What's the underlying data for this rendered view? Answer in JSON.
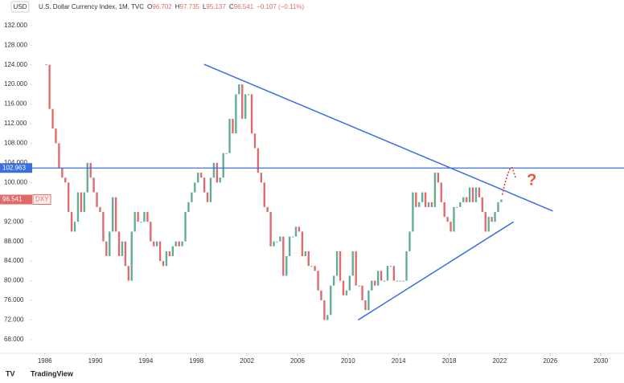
{
  "chart_data": {
    "type": "candlestick",
    "header": {
      "title": "U.S. Dollar Currency Index, 1M, TVC",
      "ohlc": [
        {
          "letter": "O",
          "value": 96.702
        },
        {
          "letter": "H",
          "value": 97.735
        },
        {
          "letter": "L",
          "value": 95.137
        },
        {
          "letter": "C",
          "value": 96.541
        }
      ],
      "change": "−0.107 (−0.11%)"
    },
    "currency": "USD",
    "symbol": "DXY",
    "brand": "TradingView",
    "annotation": "?",
    "up_color": "#5fae93",
    "down_color": "#e06a6a",
    "x": [
      1986,
      1986.25,
      1986.5,
      1986.75,
      1987,
      1987.25,
      1987.5,
      1987.75,
      1988,
      1988.25,
      1988.5,
      1988.75,
      1989,
      1989.25,
      1989.5,
      1989.75,
      1990,
      1990.25,
      1990.5,
      1990.75,
      1991,
      1991.25,
      1991.5,
      1991.75,
      1992,
      1992.25,
      1992.5,
      1992.75,
      1993,
      1993.25,
      1993.5,
      1993.75,
      1994,
      1994.25,
      1994.5,
      1994.75,
      1995,
      1995.25,
      1995.5,
      1995.75,
      1996,
      1996.25,
      1996.5,
      1996.75,
      1997,
      1997.25,
      1997.5,
      1997.75,
      1998,
      1998.25,
      1998.5,
      1998.75,
      1999,
      1999.25,
      1999.5,
      1999.75,
      2000,
      2000.25,
      2000.5,
      2000.75,
      2001,
      2001.25,
      2001.5,
      2001.75,
      2002,
      2002.25,
      2002.5,
      2002.75,
      2003,
      2003.25,
      2003.5,
      2003.75,
      2004,
      2004.25,
      2004.5,
      2004.75,
      2005,
      2005.25,
      2005.5,
      2005.75,
      2006,
      2006.25,
      2006.5,
      2006.75,
      2007,
      2007.25,
      2007.5,
      2007.75,
      2008,
      2008.25,
      2008.5,
      2008.75,
      2009,
      2009.25,
      2009.5,
      2009.75,
      2010,
      2010.25,
      2010.5,
      2010.75,
      2011,
      2011.25,
      2011.5,
      2011.75,
      2012,
      2012.25,
      2012.5,
      2012.75,
      2013,
      2013.25,
      2013.5,
      2013.75,
      2014,
      2014.25,
      2014.5,
      2014.75,
      2015,
      2015.25,
      2015.5,
      2015.75,
      2016,
      2016.25,
      2016.5,
      2016.75,
      2017,
      2017.25,
      2017.5,
      2017.75,
      2018,
      2018.25,
      2018.5,
      2018.75,
      2019,
      2019.25,
      2019.5,
      2019.75,
      2020,
      2020.25,
      2020.5,
      2020.75,
      2021,
      2021.25,
      2021.5,
      2021.75,
      2022
    ],
    "values": [
      124,
      115,
      111,
      108,
      103,
      101,
      100,
      94,
      90,
      92,
      98,
      94,
      98,
      104,
      101,
      98,
      95,
      94,
      88,
      85,
      90,
      97,
      90,
      85,
      88,
      83,
      80,
      90,
      94,
      92,
      92,
      94,
      92,
      88,
      87,
      88,
      84,
      83,
      86,
      85,
      87,
      88,
      87,
      88,
      94,
      96,
      98,
      100,
      102,
      101,
      98,
      96,
      101,
      104,
      100,
      101,
      106,
      106,
      113,
      110,
      118,
      120,
      113,
      118,
      118,
      110,
      107,
      102,
      100,
      95,
      94,
      87,
      88,
      88,
      89,
      81,
      85,
      89,
      89,
      91,
      90,
      85,
      86,
      83,
      83,
      82,
      78,
      76,
      72,
      73,
      79,
      81,
      86,
      80,
      77,
      78,
      81,
      86,
      79,
      79,
      76,
      74,
      78,
      80,
      79,
      82,
      80,
      80,
      83,
      83,
      80,
      80,
      80,
      80,
      86,
      90,
      98,
      95,
      96,
      98,
      95,
      96,
      95,
      102,
      100,
      96,
      93,
      92,
      90,
      95,
      95,
      96,
      97,
      96,
      99,
      96,
      99,
      97,
      94,
      90,
      93,
      92,
      94,
      96,
      96.541
    ],
    "level": {
      "value": 102.963,
      "label": "102.963"
    },
    "trendlines": [
      [
        [
          1998.6,
          124.1
        ],
        [
          2026.2,
          94.2
        ]
      ],
      [
        [
          2010.8,
          72
        ],
        [
          2023.1,
          92
        ]
      ]
    ],
    "projection": [
      [
        2022.2,
        97.5
      ],
      [
        2023,
        103
      ]
    ],
    "xlim": [
      1985,
      2031.2
    ],
    "ylim": [
      65.2,
      137.2
    ],
    "xticks": [
      1986,
      1990,
      1994,
      1998,
      2002,
      2006,
      2010,
      2014,
      2018,
      2022,
      2026,
      2030
    ],
    "yticks": [
      {
        "value": 68,
        "label": "68.000"
      },
      {
        "value": 72,
        "label": "72.000"
      },
      {
        "value": 76,
        "label": "76.000"
      },
      {
        "value": 80,
        "label": "80.000"
      },
      {
        "value": 84,
        "label": "84.000"
      },
      {
        "value": 88,
        "label": "88.000"
      },
      {
        "value": 92,
        "label": "92.000"
      },
      {
        "value": 96,
        "label": "96.000"
      },
      {
        "value": 100,
        "label": "100.000"
      },
      {
        "value": 104,
        "label": "104.000"
      },
      {
        "value": 108,
        "label": "108.000"
      },
      {
        "value": 112,
        "label": "112.000"
      },
      {
        "value": 116,
        "label": "116.000"
      },
      {
        "value": 120,
        "label": "120.000"
      },
      {
        "value": 124,
        "label": "124.000"
      },
      {
        "value": 128,
        "label": "128.000"
      },
      {
        "value": 132,
        "label": "132.000"
      }
    ]
  }
}
